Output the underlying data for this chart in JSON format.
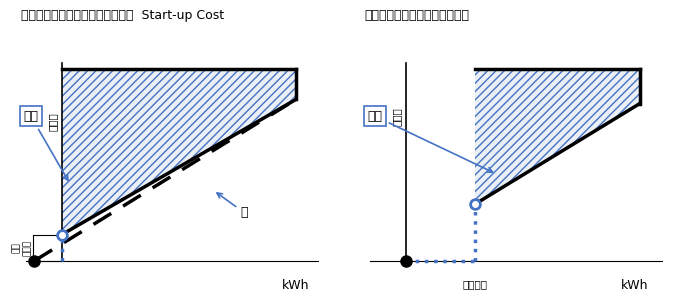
{
  "title_left_jp": "発電における非凸性：起動コスト",
  "title_left_en": "Start-up Cost",
  "title_right_jp": "発電における非凸性：最低出力",
  "xlabel": "kWh",
  "ylabel": "総費用",
  "label_startup": "起動\nコスト",
  "label_min_output": "最低出力",
  "label_nonconvex": "非凸",
  "label_convex": "凸",
  "hatch_color": "#4472C4",
  "bg_color": "#ffffff",
  "dot_color": "#4472C4"
}
